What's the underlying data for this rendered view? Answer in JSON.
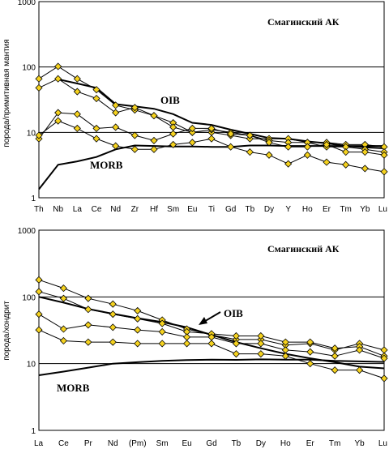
{
  "chart_data": [
    {
      "type": "line",
      "title": "Смагинский АК",
      "ylabel": "порода/примитивная мантия",
      "yscale": "log",
      "ylim": [
        1,
        1000
      ],
      "yticks": [
        "1",
        "10",
        "100",
        "1000"
      ],
      "categories": [
        "Th",
        "Nb",
        "La",
        "Ce",
        "Nd",
        "Zr",
        "Hf",
        "Sm",
        "Eu",
        "Ti",
        "Gd",
        "Tb",
        "Dy",
        "Y",
        "Ho",
        "Er",
        "Tm",
        "Yb",
        "Lu"
      ],
      "samples": [
        [
          66,
          102,
          66,
          45,
          26,
          22,
          18,
          14,
          10,
          10,
          9,
          8,
          8,
          8,
          7,
          7,
          6.5,
          6.5,
          6
        ],
        [
          48,
          66,
          42,
          33,
          20,
          24,
          18,
          12,
          10,
          11,
          10,
          9,
          7.5,
          7,
          7,
          6,
          6,
          5.5,
          5
        ],
        [
          8,
          20,
          19,
          11.5,
          12,
          9,
          7.5,
          9.5,
          11.5,
          11.5,
          9.5,
          9,
          7,
          6,
          6,
          6.5,
          5,
          5,
          4.5
        ],
        [
          9,
          15,
          11.5,
          8,
          6.2,
          5.5,
          5.5,
          6.5,
          7,
          8,
          6,
          5,
          4.5,
          3.3,
          4.5,
          3.5,
          3.2,
          2.8,
          2.5
        ]
      ],
      "reference": [
        {
          "name": "OIB",
          "values": [
            null,
            65,
            56,
            48,
            27,
            25,
            23,
            19,
            14,
            13,
            11,
            9.5,
            8.2,
            8,
            7.3,
            6.8,
            6.2,
            5.9,
            5.7
          ]
        },
        {
          "name": "MORB",
          "values": [
            1.35,
            3.2,
            3.6,
            4.2,
            5.5,
            6.3,
            6.2,
            6.1,
            6.1,
            6,
            6,
            6.3,
            6.3,
            6.2,
            6.2,
            6.2,
            6.2,
            6.2,
            6.2
          ]
        }
      ]
    },
    {
      "type": "line",
      "title": "Смагинский АК",
      "ylabel": "порода/хондрит",
      "yscale": "log",
      "ylim": [
        1,
        1000
      ],
      "yticks": [
        "1",
        "10",
        "100",
        "1000"
      ],
      "categories": [
        "La",
        "Ce",
        "Pr",
        "Nd",
        "(Pm)",
        "Sm",
        "Eu",
        "Gd",
        "Tb",
        "Dy",
        "Ho",
        "Er",
        "Tm",
        "Yb",
        "Lu"
      ],
      "samples": [
        [
          180,
          135,
          95,
          78,
          62,
          45,
          33,
          27,
          23,
          23,
          19,
          20,
          16,
          20,
          16
        ],
        [
          120,
          95,
          65,
          55,
          47,
          40,
          30,
          28,
          26,
          26,
          21,
          21,
          17,
          18,
          13
        ],
        [
          55,
          33,
          38,
          35,
          32,
          30,
          25,
          25,
          20,
          20,
          16,
          15,
          13,
          16,
          12
        ],
        [
          32,
          22,
          21,
          21,
          20,
          20,
          20,
          20,
          14,
          14,
          13,
          10,
          8,
          8,
          6
        ]
      ],
      "reference": [
        {
          "name": "OIB",
          "values": [
            100,
            82,
            66,
            56,
            48,
            42,
            35,
            27,
            21,
            17,
            14,
            12,
            10.5,
            9,
            8.5
          ]
        },
        {
          "name": "MORB",
          "values": [
            6.7,
            7.6,
            8.7,
            10,
            10.5,
            11,
            11.3,
            11.5,
            11.4,
            11.6,
            11.5,
            11.5,
            11,
            10.8,
            10.6
          ]
        }
      ]
    }
  ]
}
